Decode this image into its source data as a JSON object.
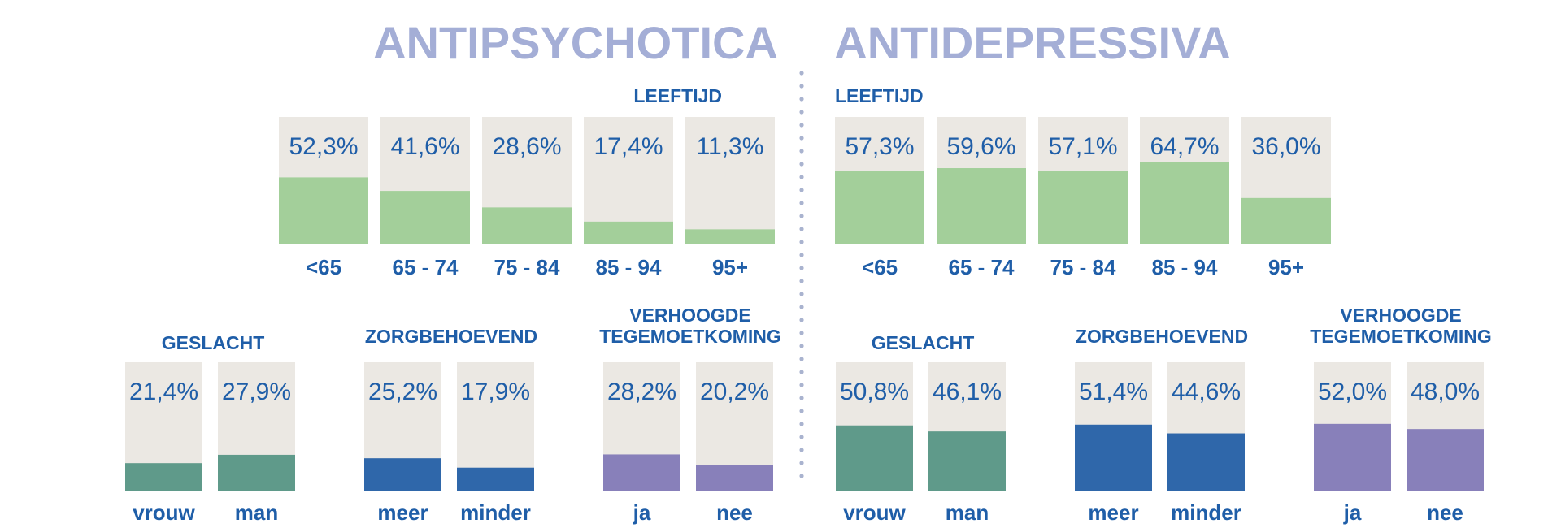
{
  "colors": {
    "background_box": "#ebe8e3",
    "green": "#a3cf9a",
    "teal": "#5f9a8a",
    "blue": "#2f67aa",
    "purple": "#8880ba",
    "title": "#a4aed6",
    "label": "#1f5ea8",
    "divider": "#a9b3cf"
  },
  "chart_data": [
    {
      "type": "bar",
      "panel": "ANTIPSYCHOTICA",
      "group": "LEEFTIJD",
      "color": "green",
      "categories": [
        "<65",
        "65 - 74",
        "75 - 84",
        "85 - 94",
        "95+"
      ],
      "values": [
        52.3,
        41.6,
        28.6,
        17.4,
        11.3
      ],
      "labels": [
        "52,3%",
        "41,6%",
        "28,6%",
        "17,4%",
        "11,3%"
      ],
      "ylim": [
        0,
        100
      ]
    },
    {
      "type": "bar",
      "panel": "ANTIDEPRESSIVA",
      "group": "LEEFTIJD",
      "color": "green",
      "categories": [
        "<65",
        "65 - 74",
        "75 - 84",
        "85 - 94",
        "95+"
      ],
      "values": [
        57.3,
        59.6,
        57.1,
        64.7,
        36.0
      ],
      "labels": [
        "57,3%",
        "59,6%",
        "57,1%",
        "64,7%",
        "36,0%"
      ],
      "ylim": [
        0,
        100
      ]
    },
    {
      "type": "bar",
      "panel": "ANTIPSYCHOTICA",
      "group": "GESLACHT",
      "color": "teal",
      "categories": [
        "vrouw",
        "man"
      ],
      "values": [
        21.4,
        27.9
      ],
      "labels": [
        "21,4%",
        "27,9%"
      ],
      "ylim": [
        0,
        100
      ]
    },
    {
      "type": "bar",
      "panel": "ANTIPSYCHOTICA",
      "group": "ZORGBEHOEVEND",
      "color": "blue",
      "categories": [
        "meer",
        "minder"
      ],
      "values": [
        25.2,
        17.9
      ],
      "labels": [
        "25,2%",
        "17,9%"
      ],
      "ylim": [
        0,
        100
      ]
    },
    {
      "type": "bar",
      "panel": "ANTIPSYCHOTICA",
      "group": "VERHOOGDE TEGEMOETKOMING",
      "color": "purple",
      "categories": [
        "ja",
        "nee"
      ],
      "values": [
        28.2,
        20.2
      ],
      "labels": [
        "28,2%",
        "20,2%"
      ],
      "ylim": [
        0,
        100
      ]
    },
    {
      "type": "bar",
      "panel": "ANTIDEPRESSIVA",
      "group": "GESLACHT",
      "color": "teal",
      "categories": [
        "vrouw",
        "man"
      ],
      "values": [
        50.8,
        46.1
      ],
      "labels": [
        "50,8%",
        "46,1%"
      ],
      "ylim": [
        0,
        100
      ]
    },
    {
      "type": "bar",
      "panel": "ANTIDEPRESSIVA",
      "group": "ZORGBEHOEVEND",
      "color": "blue",
      "categories": [
        "meer",
        "minder"
      ],
      "values": [
        51.4,
        44.6
      ],
      "labels": [
        "51,4%",
        "44,6%"
      ],
      "ylim": [
        0,
        100
      ]
    },
    {
      "type": "bar",
      "panel": "ANTIDEPRESSIVA",
      "group": "VERHOOGDE TEGEMOETKOMING",
      "color": "purple",
      "categories": [
        "ja",
        "nee"
      ],
      "values": [
        52.0,
        48.0
      ],
      "labels": [
        "52,0%",
        "48,0%"
      ],
      "ylim": [
        0,
        100
      ]
    }
  ]
}
